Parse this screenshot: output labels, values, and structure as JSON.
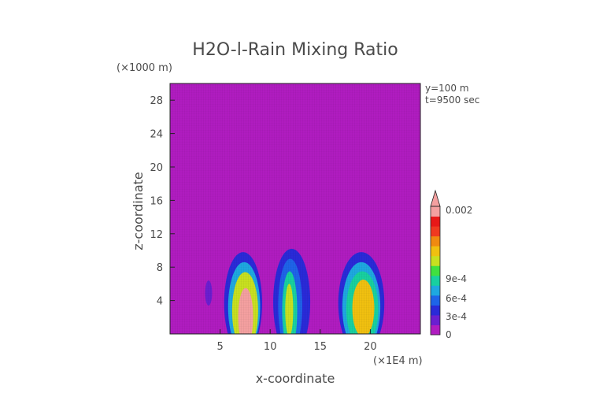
{
  "chart_data": {
    "type": "heatmap",
    "title": "H2O-l-Rain Mixing Ratio",
    "xlabel": "x-coordinate",
    "ylabel": "z-coordinate",
    "x_unit": "(×1E4 m)",
    "y_unit": "(×1000 m)",
    "annotations": [
      "y=100 m",
      "t=9500 sec"
    ],
    "xlim": [
      0,
      25
    ],
    "ylim": [
      0,
      30
    ],
    "x_ticks": [
      5,
      10,
      15,
      20
    ],
    "y_ticks": [
      4,
      8,
      12,
      16,
      20,
      24,
      28
    ],
    "colorbar": {
      "labels": [
        {
          "value": 0,
          "text": "0"
        },
        {
          "value": 0.0003,
          "text": "3e-4"
        },
        {
          "value": 0.0006,
          "text": "6e-4"
        },
        {
          "value": 0.0009,
          "text": "9e-4"
        },
        {
          "value": 0.002,
          "text": "0.002"
        }
      ],
      "colors": [
        "#b01cc0",
        "#6a1fd0",
        "#2a2ad8",
        "#1e64e8",
        "#1ea8e0",
        "#18d0a0",
        "#40e040",
        "#c8e020",
        "#f0c010",
        "#f08a10",
        "#f03a20",
        "#e81818",
        "#f4a0a0"
      ]
    },
    "background_color": "#b01cc0",
    "cells": [
      {
        "x": [
          3.5,
          4.2
        ],
        "z": [
          4.0,
          6.4
        ],
        "v": 0.00015
      },
      {
        "x": [
          5.4,
          9.2
        ],
        "z": [
          0.0,
          9.8
        ],
        "v": 0.0003
      },
      {
        "x": [
          5.8,
          9.0
        ],
        "z": [
          0.0,
          8.6
        ],
        "v": 0.0006
      },
      {
        "x": [
          6.2,
          8.8
        ],
        "z": [
          0.0,
          7.4
        ],
        "v": 0.0011
      },
      {
        "x": [
          6.8,
          8.3
        ],
        "z": [
          0.0,
          5.5
        ],
        "v": 0.002
      },
      {
        "x": [
          10.3,
          14.0
        ],
        "z": [
          0.0,
          10.2
        ],
        "v": 0.0003
      },
      {
        "x": [
          10.8,
          13.2
        ],
        "z": [
          0.0,
          9.0
        ],
        "v": 0.00055
      },
      {
        "x": [
          11.2,
          12.7
        ],
        "z": [
          0.0,
          7.5
        ],
        "v": 0.0009
      },
      {
        "x": [
          11.5,
          12.3
        ],
        "z": [
          1.0,
          6.0
        ],
        "v": 0.0012
      },
      {
        "x": [
          16.8,
          21.4
        ],
        "z": [
          0.0,
          9.8
        ],
        "v": 0.0003
      },
      {
        "x": [
          17.2,
          21.0
        ],
        "z": [
          0.0,
          8.6
        ],
        "v": 0.0006
      },
      {
        "x": [
          17.6,
          20.8
        ],
        "z": [
          0.3,
          7.5
        ],
        "v": 0.0009
      },
      {
        "x": [
          18.2,
          20.4
        ],
        "z": [
          1.0,
          6.5
        ],
        "v": 0.0013
      }
    ]
  }
}
